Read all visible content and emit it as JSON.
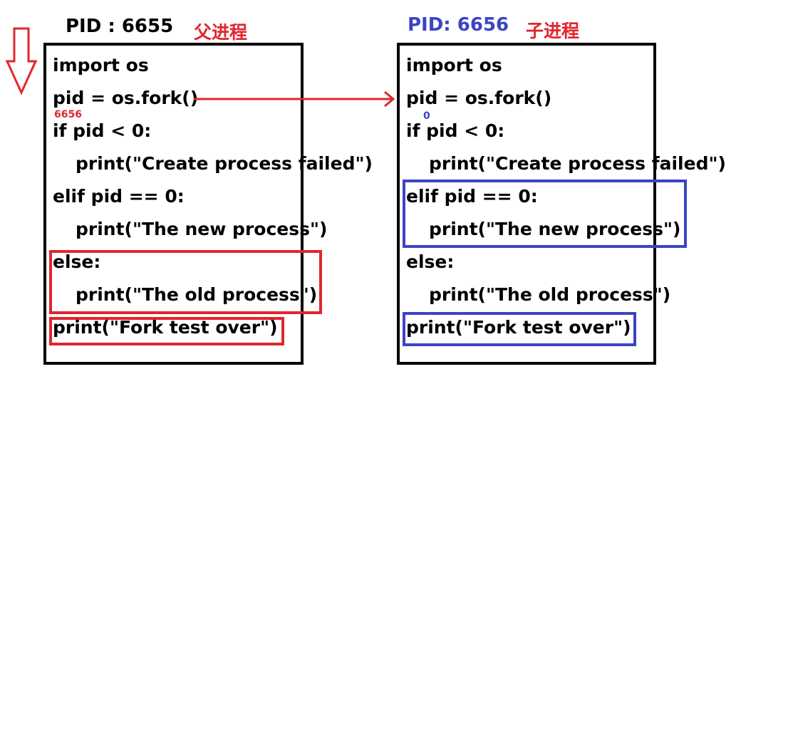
{
  "parent": {
    "pid_label": "PID : 6655",
    "role_label": "父进程",
    "fork_return": "6656"
  },
  "child": {
    "pid_label": "PID: 6656",
    "role_label": "子进程",
    "fork_return": "0"
  },
  "code_lines": [
    "import os",
    "pid = os.fork()",
    "if pid < 0:",
    "print(\"Create process failed\")",
    "elif pid == 0:",
    "print(\"The new process\")",
    "else:",
    "print(\"The old process\")",
    "print(\"Fork test over\")"
  ],
  "colors": {
    "parent_highlight": "#e0262e",
    "child_highlight": "#3b44c4",
    "arrow": "#e0262e",
    "pid_child_text": "#3b44c4",
    "cn_label": "#e0262e"
  }
}
